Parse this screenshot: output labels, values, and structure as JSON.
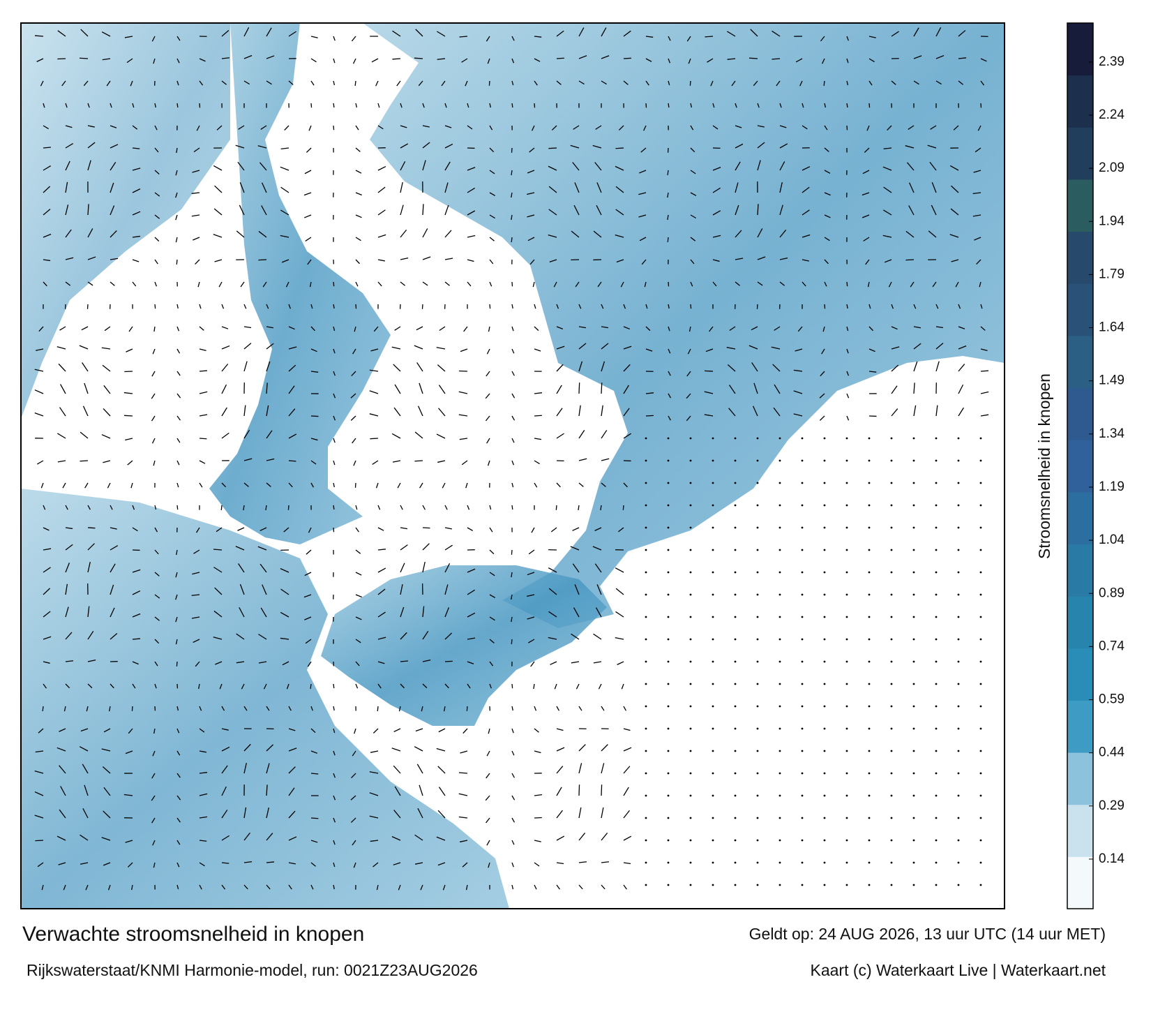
{
  "title": "Verwachte stroomsnelheid in knopen",
  "source": "Rijkswaterstaat/KNMI Harmonie-model, run: 0021Z23AUG2026",
  "valid_time": "Geldt op: 24 AUG 2026, 13 uur UTC (14 uur MET)",
  "credit": "Kaart (c) Waterkaart Live | Waterkaart.net",
  "colorbar": {
    "label": "Stroomsnelheid in knopen",
    "lim": [
      0,
      2.5
    ],
    "ticks": [
      0.14,
      0.29,
      0.44,
      0.59,
      0.74,
      0.89,
      1.04,
      1.19,
      1.34,
      1.49,
      1.64,
      1.79,
      1.94,
      2.09,
      2.24,
      2.39
    ],
    "colors": [
      "#f4f9fc",
      "#c9e2ee",
      "#8cc2dc",
      "#3d9bc4",
      "#2a8db8",
      "#2784ad",
      "#2a7aa6",
      "#2d6ea0",
      "#30619a",
      "#2e5a8f",
      "#2b5f84",
      "#2a5278",
      "#274a6c",
      "#2a5c60",
      "#213e5c",
      "#1c2f4d",
      "#171c3a"
    ]
  }
}
